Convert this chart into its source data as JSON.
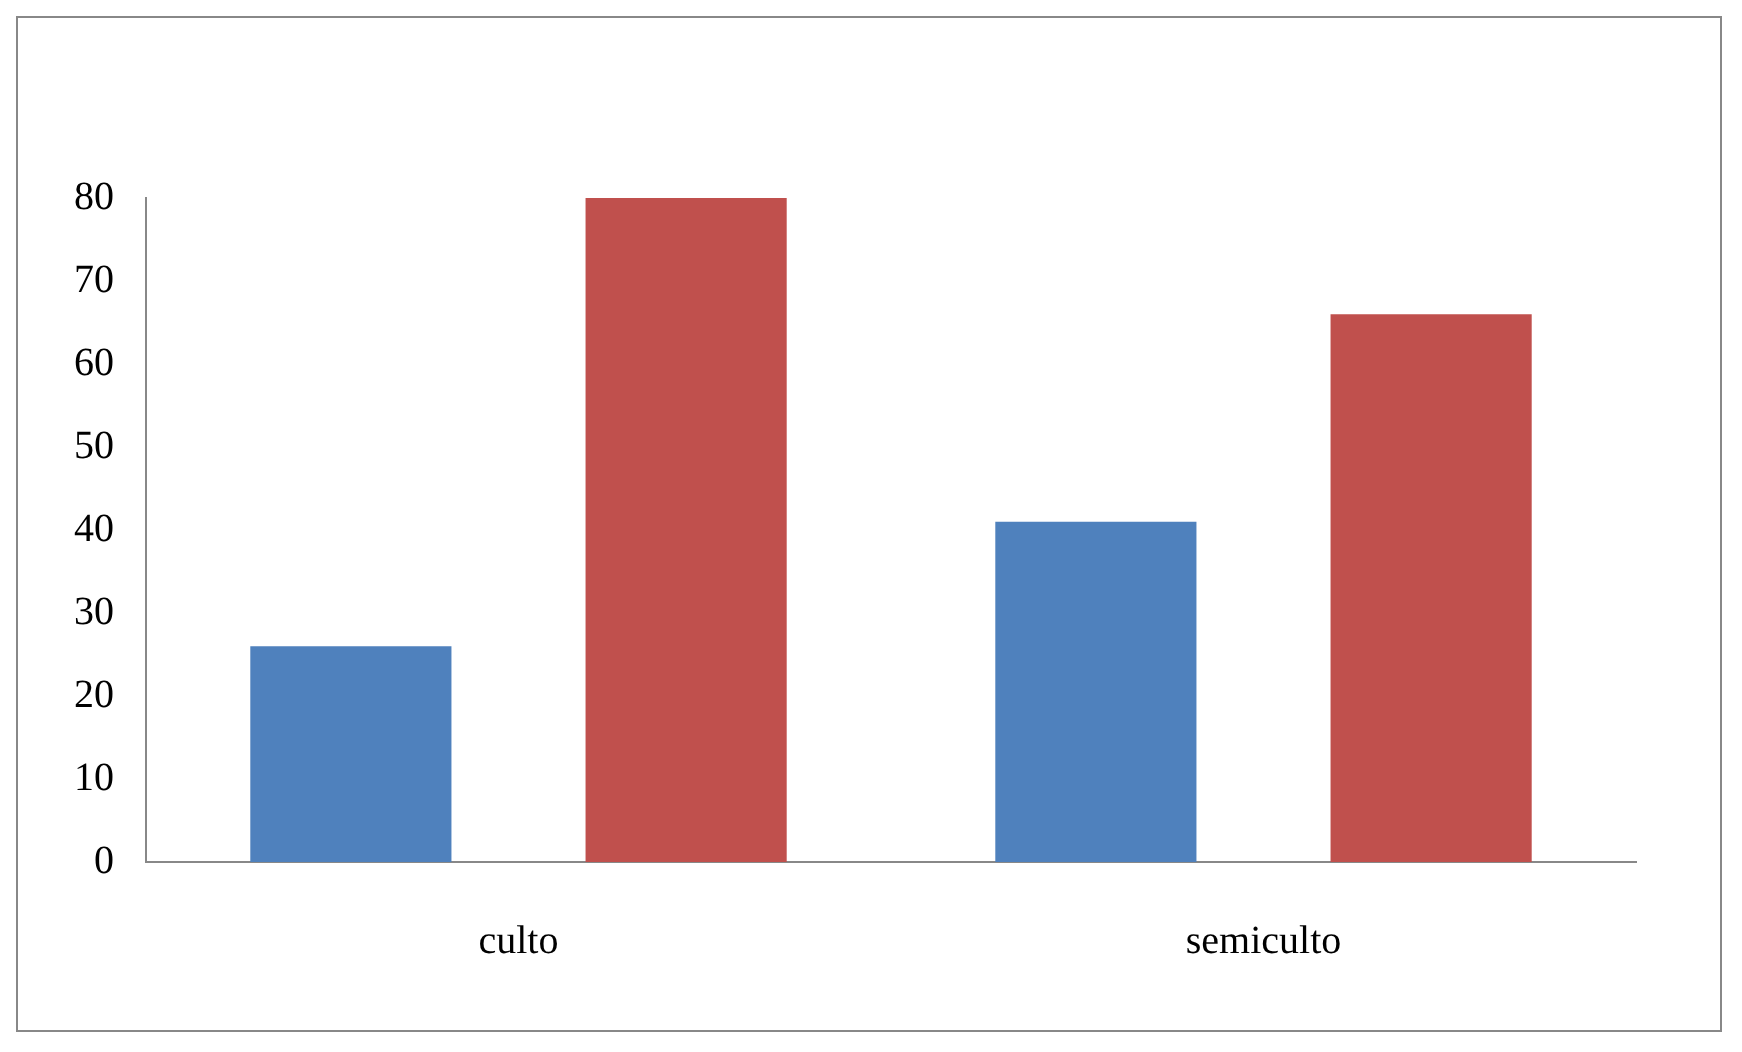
{
  "chart_data": {
    "type": "bar",
    "categories": [
      "culto",
      "semiculto"
    ],
    "series": [
      {
        "color": "#4f81bd",
        "values": [
          26,
          41
        ]
      },
      {
        "color": "#c0504d",
        "values": [
          80,
          66
        ]
      }
    ],
    "ylim": [
      0,
      80
    ],
    "yticks": [
      0,
      10,
      20,
      30,
      40,
      50,
      60,
      70,
      80
    ],
    "grid": false,
    "legend": false
  }
}
